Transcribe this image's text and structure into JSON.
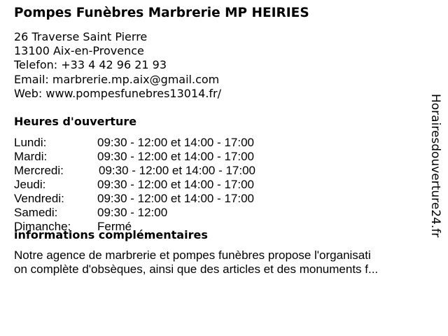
{
  "business": {
    "name": "Pompes Funèbres Marbrerie MP HEIRIES",
    "address_line1": "26 Traverse Saint Pierre",
    "address_line2": "13100 Aix-en-Provence",
    "phone": "Telefon: +33 4 42 96 21 93",
    "email": "Email: marbrerie.mp.aix@gmail.com",
    "web": "Web: www.pompesfunebres13014.fr/"
  },
  "hours": {
    "heading": "Heures d'ouverture",
    "days": [
      {
        "day": "Lundi:",
        "time": "09:30 - 12:00 et 14:00 - 17:00"
      },
      {
        "day": "Mardi:",
        "time": "09:30 - 12:00 et 14:00 - 17:00"
      },
      {
        "day": "Mercredi:",
        "time": "09:30 - 12:00 et 14:00 - 17:00"
      },
      {
        "day": "Jeudi:",
        "time": "09:30 - 12:00 et 14:00 - 17:00"
      },
      {
        "day": "Vendredi:",
        "time": "09:30 - 12:00 et 14:00 - 17:00"
      },
      {
        "day": "Samedi:",
        "time": "09:30 - 12:00"
      },
      {
        "day": "Dimanche:",
        "time": "Fermé"
      }
    ]
  },
  "info": {
    "heading": "informations complémentaires",
    "line1": "Notre agence de marbrerie et pompes funèbres propose l'organisati",
    "line2": "on complète d'obsèques, ainsi que des articles et des monuments f..."
  },
  "watermark": "Horairesdouverture24.fr"
}
